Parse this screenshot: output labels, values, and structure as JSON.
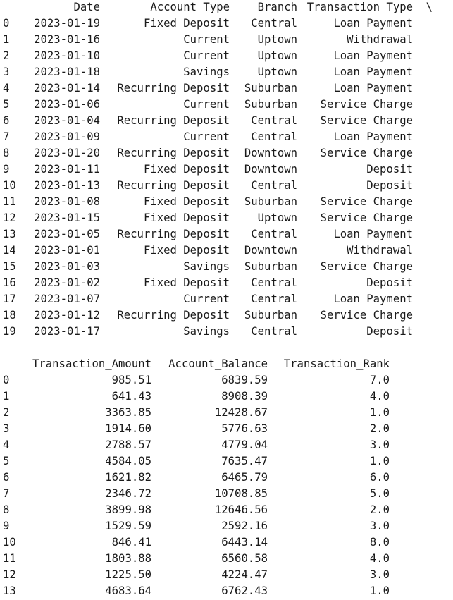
{
  "table1": {
    "headers": [
      "",
      "Date",
      "Account_Type",
      "Branch",
      "Transaction_Type",
      "\\"
    ],
    "rows": [
      [
        "0",
        "2023-01-19",
        "Fixed Deposit",
        "Central",
        "Loan Payment"
      ],
      [
        "1",
        "2023-01-16",
        "Current",
        "Uptown",
        "Withdrawal"
      ],
      [
        "2",
        "2023-01-10",
        "Current",
        "Uptown",
        "Loan Payment"
      ],
      [
        "3",
        "2023-01-18",
        "Savings",
        "Uptown",
        "Loan Payment"
      ],
      [
        "4",
        "2023-01-14",
        "Recurring Deposit",
        "Suburban",
        "Loan Payment"
      ],
      [
        "5",
        "2023-01-06",
        "Current",
        "Suburban",
        "Service Charge"
      ],
      [
        "6",
        "2023-01-04",
        "Recurring Deposit",
        "Central",
        "Service Charge"
      ],
      [
        "7",
        "2023-01-09",
        "Current",
        "Central",
        "Loan Payment"
      ],
      [
        "8",
        "2023-01-20",
        "Recurring Deposit",
        "Downtown",
        "Service Charge"
      ],
      [
        "9",
        "2023-01-11",
        "Fixed Deposit",
        "Downtown",
        "Deposit"
      ],
      [
        "10",
        "2023-01-13",
        "Recurring Deposit",
        "Central",
        "Deposit"
      ],
      [
        "11",
        "2023-01-08",
        "Fixed Deposit",
        "Suburban",
        "Service Charge"
      ],
      [
        "12",
        "2023-01-15",
        "Fixed Deposit",
        "Uptown",
        "Service Charge"
      ],
      [
        "13",
        "2023-01-05",
        "Recurring Deposit",
        "Central",
        "Loan Payment"
      ],
      [
        "14",
        "2023-01-01",
        "Fixed Deposit",
        "Downtown",
        "Withdrawal"
      ],
      [
        "15",
        "2023-01-03",
        "Savings",
        "Suburban",
        "Service Charge"
      ],
      [
        "16",
        "2023-01-02",
        "Fixed Deposit",
        "Central",
        "Deposit"
      ],
      [
        "17",
        "2023-01-07",
        "Current",
        "Central",
        "Loan Payment"
      ],
      [
        "18",
        "2023-01-12",
        "Recurring Deposit",
        "Suburban",
        "Service Charge"
      ],
      [
        "19",
        "2023-01-17",
        "Savings",
        "Central",
        "Deposit"
      ]
    ]
  },
  "table2": {
    "headers": [
      "",
      "Transaction_Amount",
      "Account_Balance",
      "Transaction_Rank"
    ],
    "rows": [
      [
        "0",
        "985.51",
        "6839.59",
        "7.0"
      ],
      [
        "1",
        "641.43",
        "8908.39",
        "4.0"
      ],
      [
        "2",
        "3363.85",
        "12428.67",
        "1.0"
      ],
      [
        "3",
        "1914.60",
        "5776.63",
        "2.0"
      ],
      [
        "4",
        "2788.57",
        "4779.04",
        "3.0"
      ],
      [
        "5",
        "4584.05",
        "7635.47",
        "1.0"
      ],
      [
        "6",
        "1621.82",
        "6465.79",
        "6.0"
      ],
      [
        "7",
        "2346.72",
        "10708.85",
        "5.0"
      ],
      [
        "8",
        "3899.98",
        "12646.56",
        "2.0"
      ],
      [
        "9",
        "1529.59",
        "2592.16",
        "3.0"
      ],
      [
        "10",
        "846.41",
        "6443.14",
        "8.0"
      ],
      [
        "11",
        "1803.88",
        "6560.58",
        "4.0"
      ],
      [
        "12",
        "1225.50",
        "4224.47",
        "3.0"
      ],
      [
        "13",
        "4683.64",
        "6762.43",
        "1.0"
      ]
    ]
  }
}
